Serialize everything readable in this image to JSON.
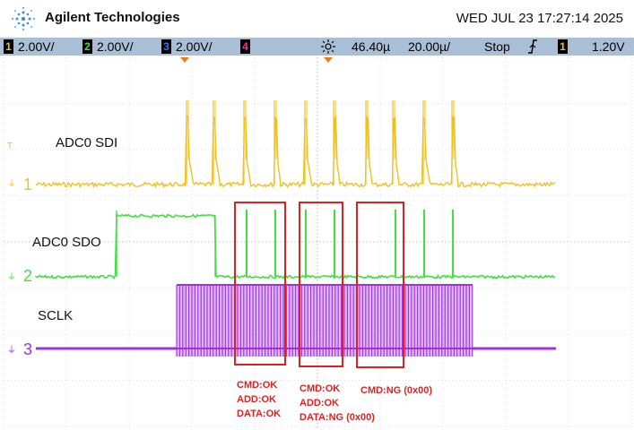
{
  "header": {
    "brand": "Agilent Technologies",
    "datetime": "WED JUL 23 17:27:14 2025",
    "logo_icon": "agilent-spark-icon"
  },
  "statusbar": {
    "ch1": {
      "num": "1",
      "scale": "2.00V/",
      "color": "#f0c020"
    },
    "ch2": {
      "num": "2",
      "scale": "2.00V/",
      "color": "#40e040"
    },
    "ch3": {
      "num": "3",
      "scale": "2.00V/",
      "color": "#4070ff"
    },
    "ch4": {
      "num": "4",
      "color": "#ff3090"
    },
    "delay_icon": "trigger-delay-icon",
    "delay": "46.40µ",
    "timebase": "20.00µ/",
    "run_state": "Stop",
    "edge_icon": "rising-edge-icon",
    "trig_ch": "1",
    "trig_level": "1.20V"
  },
  "traces": {
    "sdi": {
      "label": "ADC0 SDI",
      "marker": "1",
      "color": "#f0c020"
    },
    "sdo": {
      "label": "ADC0 SDO",
      "marker": "2",
      "color": "#40e040"
    },
    "sclk": {
      "label": "SCLK",
      "marker": "3",
      "color": "#a030e0"
    }
  },
  "trigger_marker": "T",
  "annotations": [
    {
      "lines": [
        "CMD:OK",
        "ADD:OK",
        "DATA:OK"
      ]
    },
    {
      "lines": [
        "CMD:OK",
        "ADD:OK",
        "DATA:NG (0x00)"
      ]
    },
    {
      "lines": [
        "CMD:NG (0x00)"
      ]
    }
  ],
  "colors": {
    "grid": "#c8c8c8",
    "annotation": "#e02020",
    "statusbar": "#a9bfd6"
  }
}
